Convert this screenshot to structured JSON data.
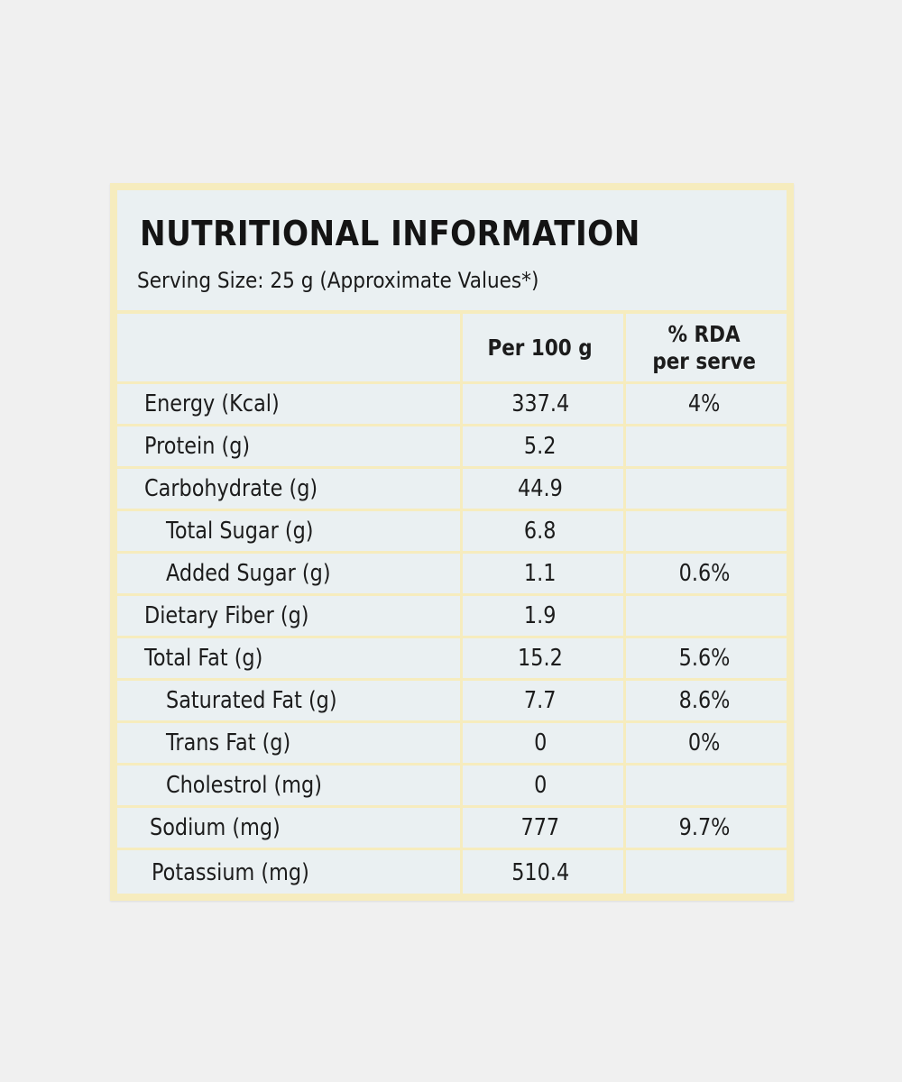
{
  "label": {
    "title": "NUTRITIONAL INFORMATION",
    "serving": "Serving Size: 25 g (Approximate Values*)",
    "headers": {
      "per100": "Per 100 g",
      "rda_line1": "% RDA",
      "rda_line2": "per serve"
    },
    "rows": [
      {
        "name": "Energy (Kcal)",
        "per100": "337.4",
        "rda": "4%"
      },
      {
        "name": "Protein (g)",
        "per100": "5.2",
        "rda": ""
      },
      {
        "name": "Carbohydrate (g)",
        "per100": "44.9",
        "rda": ""
      },
      {
        "name": "Total Sugar (g)",
        "per100": "6.8",
        "rda": ""
      },
      {
        "name": "Added Sugar (g)",
        "per100": "1.1",
        "rda": "0.6%"
      },
      {
        "name": "Dietary Fiber (g)",
        "per100": "1.9",
        "rda": ""
      },
      {
        "name": "Total Fat (g)",
        "per100": "15.2",
        "rda": "5.6%"
      },
      {
        "name": "Saturated Fat (g)",
        "per100": "7.7",
        "rda": "8.6%"
      },
      {
        "name": "Trans Fat (g)",
        "per100": "0",
        "rda": "0%"
      },
      {
        "name": "Cholestrol (mg)",
        "per100": "0",
        "rda": ""
      },
      {
        "name": "Sodium (mg)",
        "per100": "777",
        "rda": "9.7%"
      },
      {
        "name": "Potassium (mg)",
        "per100": "510.4",
        "rda": ""
      }
    ]
  }
}
